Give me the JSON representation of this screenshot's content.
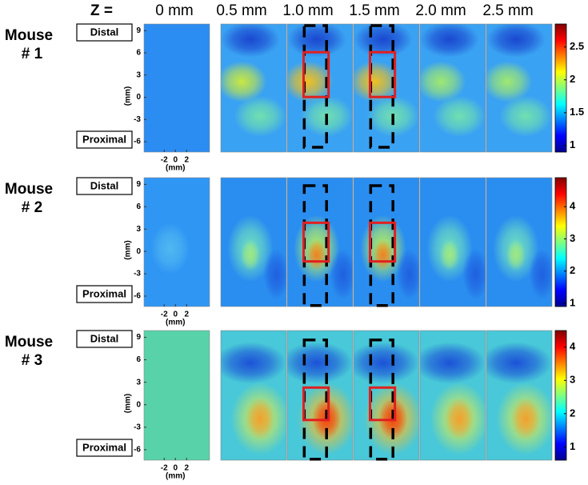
{
  "header": {
    "z_label": "Z =",
    "depths": [
      "0 mm",
      "0.5 mm",
      "1.0 mm",
      "1.5 mm",
      "2.0 mm",
      "2.5 mm"
    ]
  },
  "axes": {
    "y_label": "(mm)",
    "x_label": "(mm)",
    "yticks": [
      9,
      6,
      3,
      0,
      -3,
      -6
    ],
    "ylim": [
      -7.4,
      9.9
    ],
    "xticks": [
      -2,
      0,
      2
    ],
    "xlim": [
      -5.6,
      6.1
    ]
  },
  "rows": [
    {
      "mouse": "Mouse",
      "number": "# 1",
      "distal": "Distal",
      "proximal": "Proximal",
      "colorbar": {
        "lim": [
          0.9,
          2.85
        ],
        "ticks": [
          1,
          1.5,
          2,
          2.5
        ]
      }
    },
    {
      "mouse": "Mouse",
      "number": "# 2",
      "distal": "Distal",
      "proximal": "Proximal",
      "colorbar": {
        "lim": [
          0.9,
          4.9
        ],
        "ticks": [
          1,
          2,
          3,
          4
        ]
      }
    },
    {
      "mouse": "Mouse",
      "number": "# 3",
      "distal": "Distal",
      "proximal": "Proximal",
      "colorbar": {
        "lim": [
          0.6,
          4.5
        ],
        "ticks": [
          1,
          2,
          3,
          4
        ]
      }
    }
  ]
}
